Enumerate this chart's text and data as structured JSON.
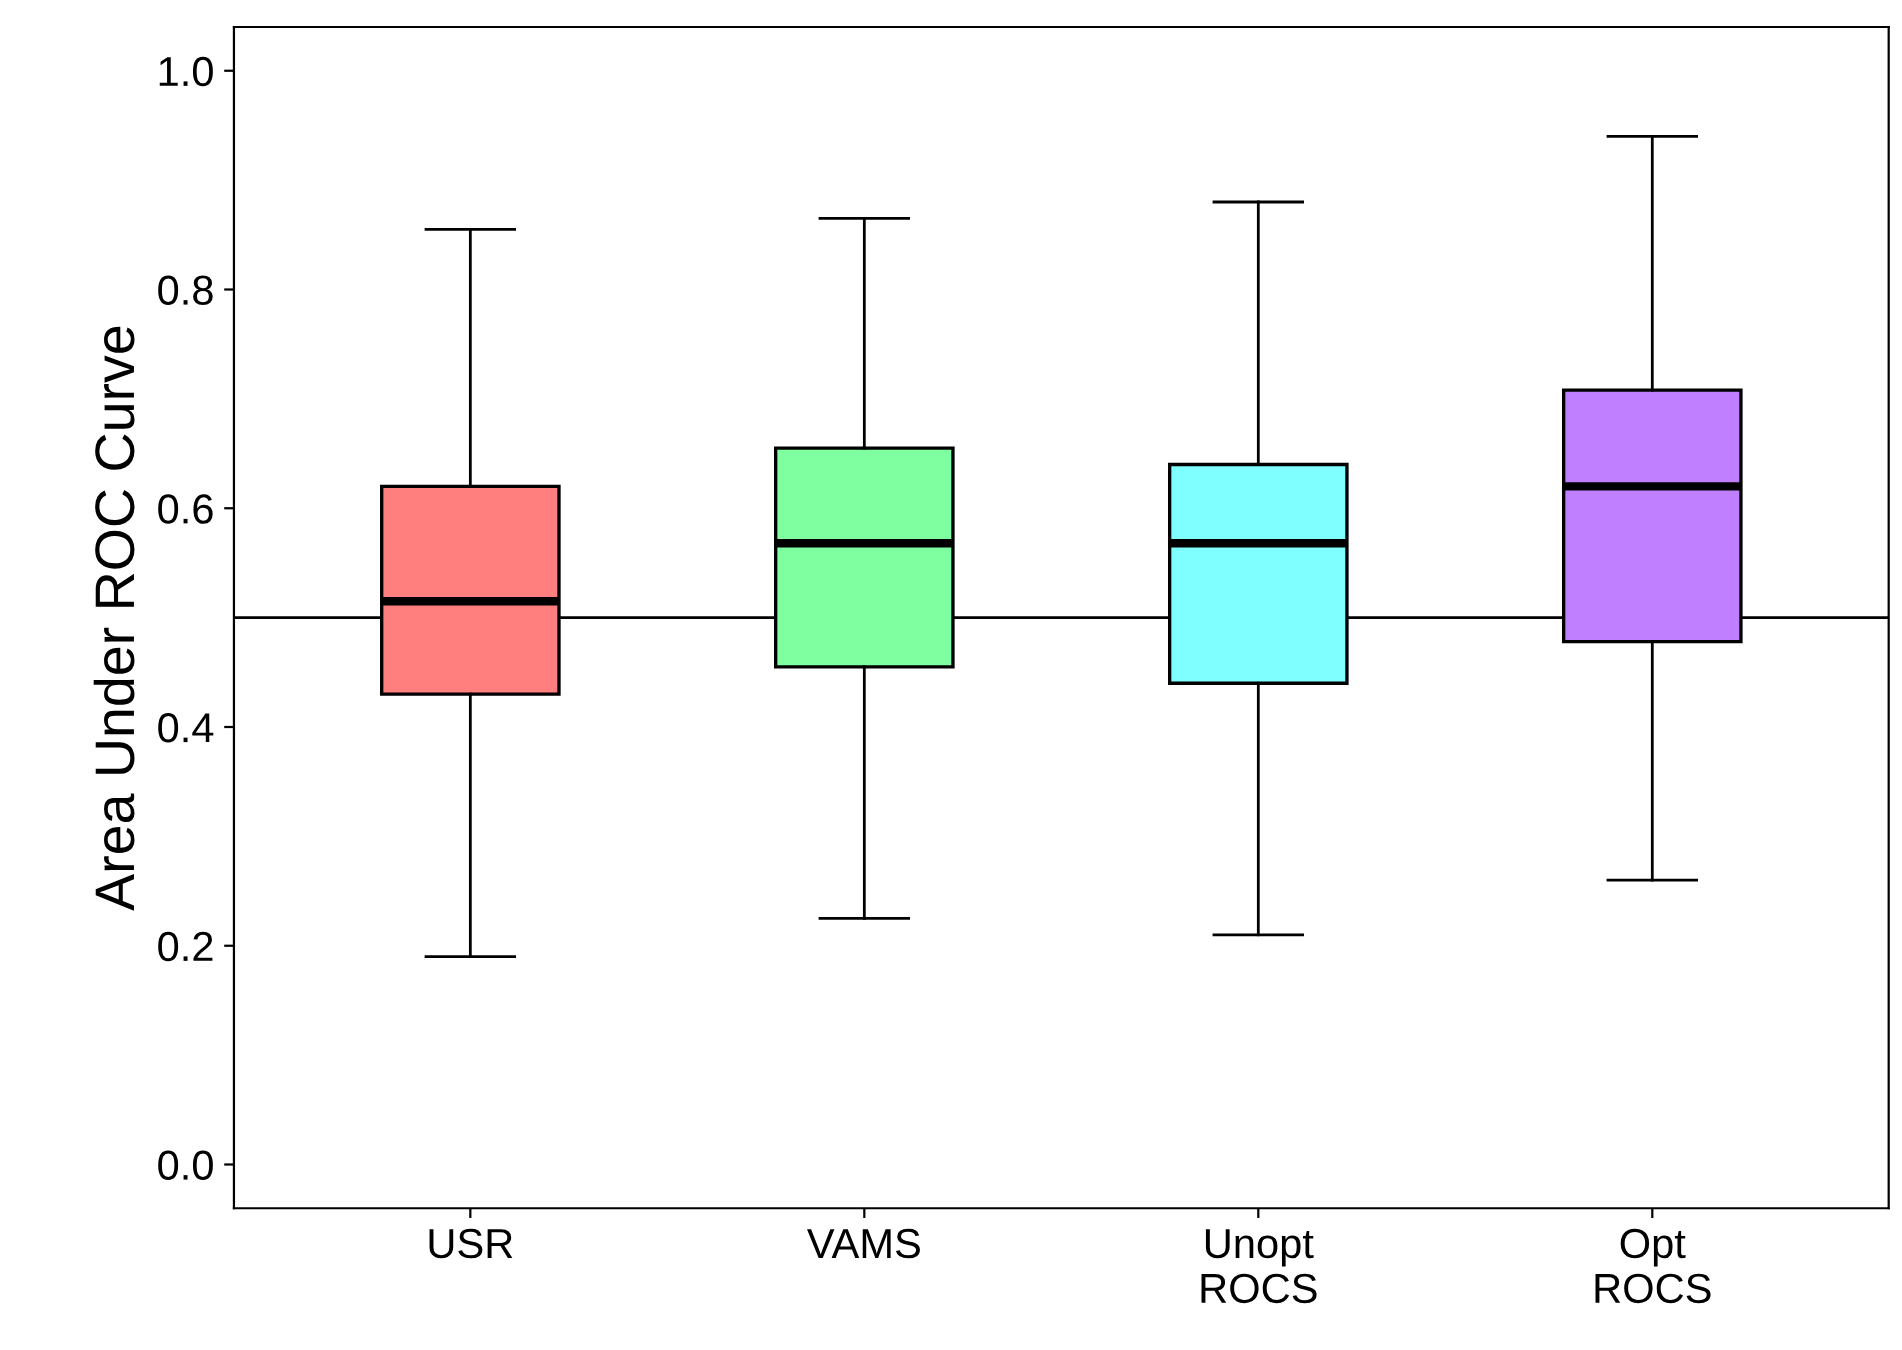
{
  "chart_data": {
    "type": "box",
    "ylabel": "Area Under ROC Curve",
    "categories": [
      "USR",
      "VAMS",
      "Unopt\nROCS",
      "Opt\nROCS"
    ],
    "colors": [
      "#ff7f7f",
      "#7fff9f",
      "#7fffff",
      "#bf7fff"
    ],
    "boxes": [
      {
        "low": 0.19,
        "q1": 0.43,
        "median": 0.515,
        "q3": 0.62,
        "high": 0.855
      },
      {
        "low": 0.225,
        "q1": 0.455,
        "median": 0.568,
        "q3": 0.655,
        "high": 0.865
      },
      {
        "low": 0.21,
        "q1": 0.44,
        "median": 0.568,
        "q3": 0.64,
        "high": 0.88
      },
      {
        "low": 0.26,
        "q1": 0.478,
        "median": 0.62,
        "q3": 0.708,
        "high": 0.94
      }
    ],
    "ylim": [
      -0.04,
      1.04
    ],
    "yticks": [
      {
        "value": 0,
        "label": "0.0"
      },
      {
        "value": 0.2,
        "label": "0.2"
      },
      {
        "value": 0.4,
        "label": "0.4"
      },
      {
        "value": 0.6,
        "label": "0.6"
      },
      {
        "value": 0.8,
        "label": "0.8"
      },
      {
        "value": 1,
        "label": "1.0"
      }
    ],
    "ref_lines": [
      {
        "axis": "y",
        "value": 0.5,
        "color": "#000000"
      }
    ],
    "grid": false
  }
}
